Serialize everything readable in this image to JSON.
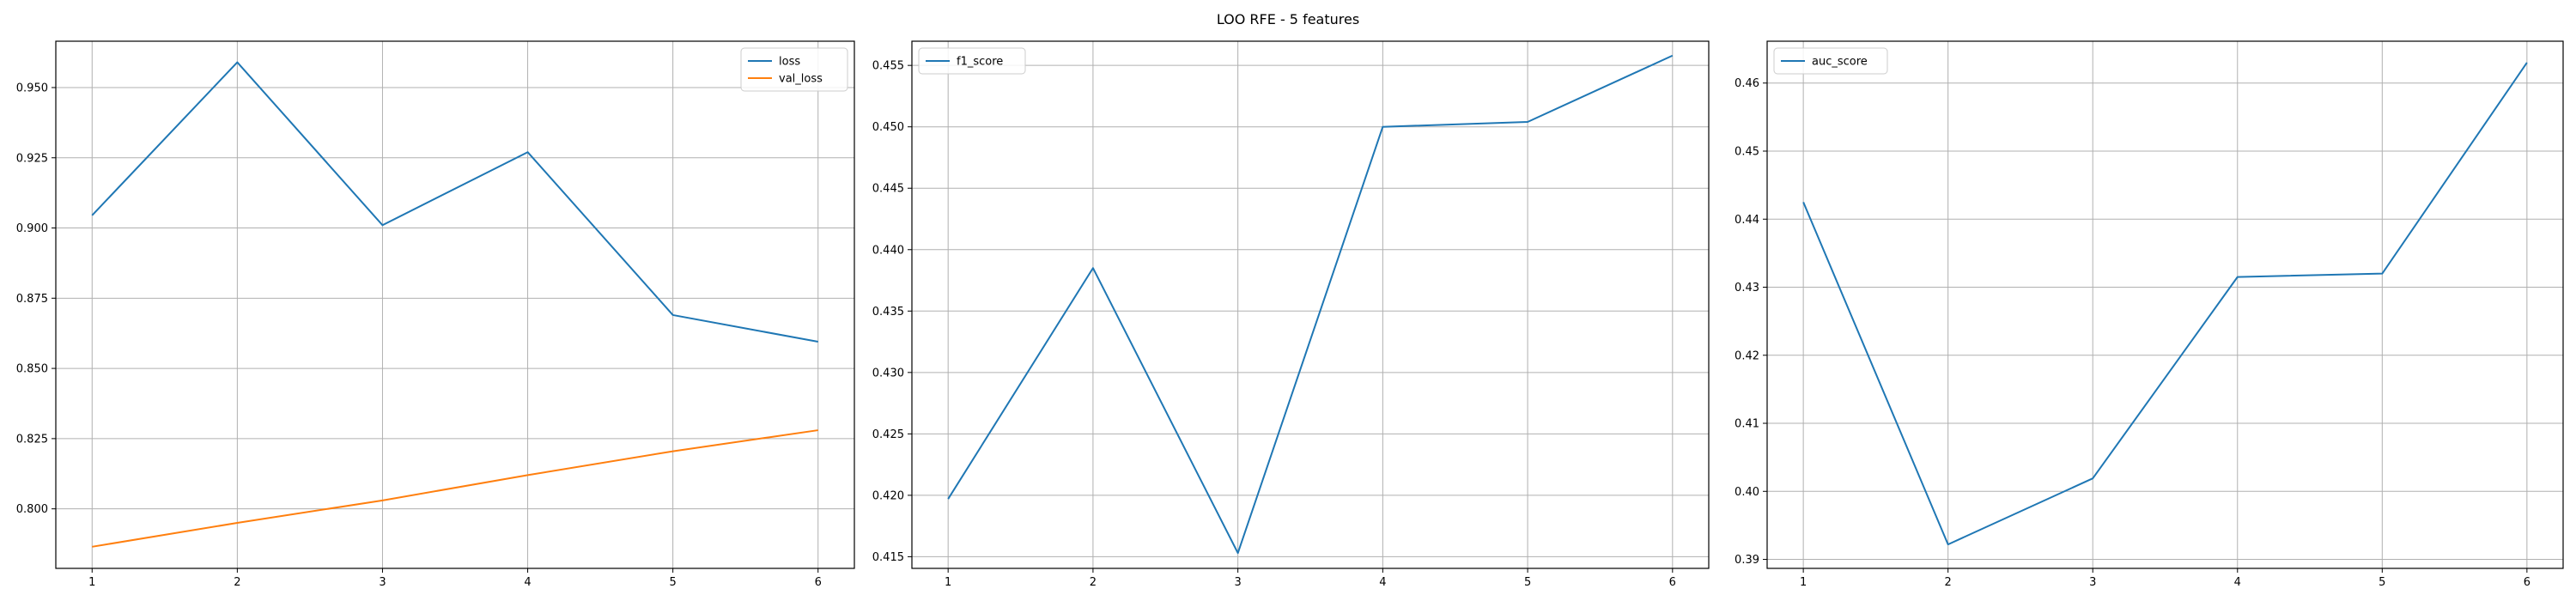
{
  "figure": {
    "suptitle": "LOO RFE - 5 features"
  },
  "chart_data": [
    {
      "type": "line",
      "x": [
        1,
        2,
        3,
        4,
        5,
        6
      ],
      "xlim": [
        0.75,
        6.25
      ],
      "ylim": [
        0.7788,
        0.9665
      ],
      "xticks": [
        1,
        2,
        3,
        4,
        5,
        6
      ],
      "yticks": [
        0.8,
        0.825,
        0.85,
        0.875,
        0.9,
        0.925,
        0.95
      ],
      "ytick_labels": [
        "0.800",
        "0.825",
        "0.850",
        "0.875",
        "0.900",
        "0.925",
        "0.950"
      ],
      "grid": true,
      "legend": "top-right",
      "series": [
        {
          "name": "loss",
          "color": "#1f77b4",
          "values": [
            0.9045,
            0.959,
            0.901,
            0.927,
            0.869,
            0.8595
          ]
        },
        {
          "name": "val_loss",
          "color": "#ff7f0e",
          "values": [
            0.7865,
            0.795,
            0.803,
            0.812,
            0.8205,
            0.828
          ]
        }
      ]
    },
    {
      "type": "line",
      "x": [
        1,
        2,
        3,
        4,
        5,
        6
      ],
      "xlim": [
        0.75,
        6.25
      ],
      "ylim": [
        0.41405,
        0.45697
      ],
      "xticks": [
        1,
        2,
        3,
        4,
        5,
        6
      ],
      "yticks": [
        0.415,
        0.42,
        0.425,
        0.43,
        0.435,
        0.44,
        0.445,
        0.45,
        0.455
      ],
      "ytick_labels": [
        "0.415",
        "0.420",
        "0.425",
        "0.430",
        "0.435",
        "0.440",
        "0.445",
        "0.450",
        "0.455"
      ],
      "grid": true,
      "legend": "top-left",
      "series": [
        {
          "name": "f1_score",
          "color": "#1f77b4",
          "values": [
            0.4197,
            0.4385,
            0.4153,
            0.45,
            0.4504,
            0.4558
          ]
        }
      ]
    },
    {
      "type": "line",
      "x": [
        1,
        2,
        3,
        4,
        5,
        6
      ],
      "xlim": [
        0.75,
        6.25
      ],
      "ylim": [
        0.38868,
        0.46615
      ],
      "xticks": [
        1,
        2,
        3,
        4,
        5,
        6
      ],
      "yticks": [
        0.39,
        0.4,
        0.41,
        0.42,
        0.43,
        0.44,
        0.45,
        0.46
      ],
      "ytick_labels": [
        "0.39",
        "0.40",
        "0.41",
        "0.42",
        "0.43",
        "0.44",
        "0.45",
        "0.46"
      ],
      "grid": true,
      "legend": "top-left",
      "series": [
        {
          "name": "auc_score",
          "color": "#1f77b4",
          "values": [
            0.4425,
            0.3922,
            0.4019,
            0.4315,
            0.432,
            0.463
          ]
        }
      ]
    }
  ]
}
